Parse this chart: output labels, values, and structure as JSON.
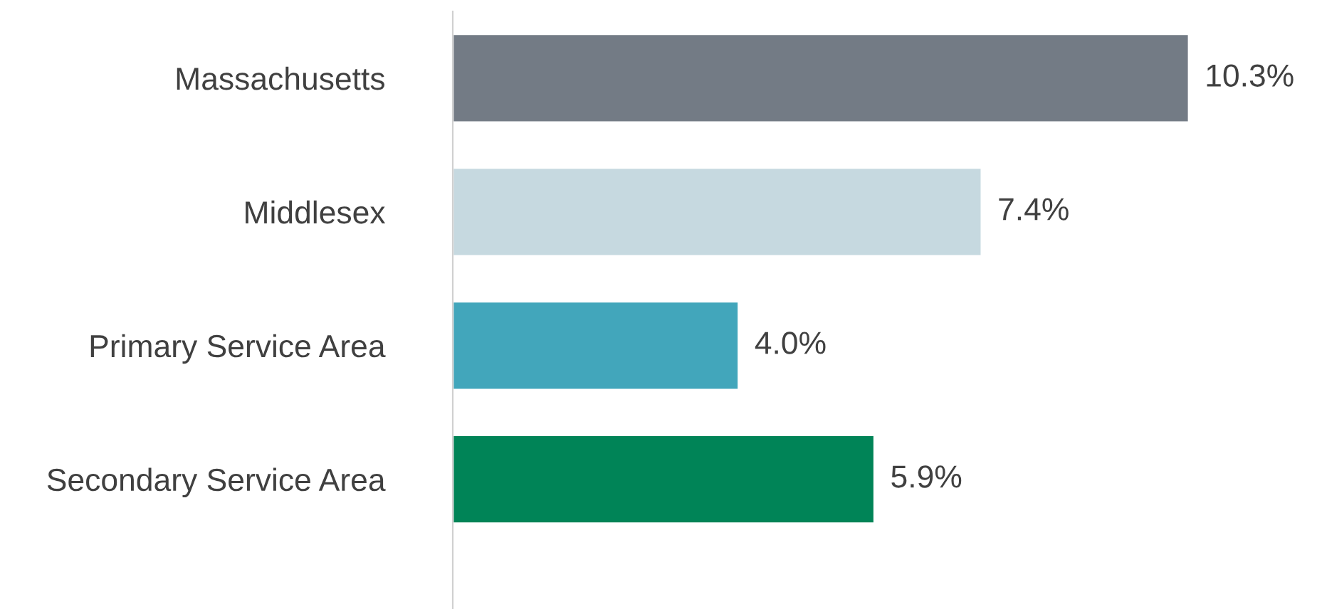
{
  "chart_data": {
    "type": "bar",
    "orientation": "horizontal",
    "categories": [
      "Massachusetts",
      "Middlesex",
      "Primary Service Area",
      "Secondary Service Area"
    ],
    "values": [
      10.3,
      7.4,
      4.0,
      5.9
    ],
    "value_labels": [
      "10.3%",
      "7.4%",
      "4.0%",
      "5.9%"
    ],
    "colors": [
      "#737b85",
      "#c6d9e0",
      "#42a6bb",
      "#008457"
    ],
    "grid": false,
    "legend": false,
    "tick_labels": "y"
  }
}
